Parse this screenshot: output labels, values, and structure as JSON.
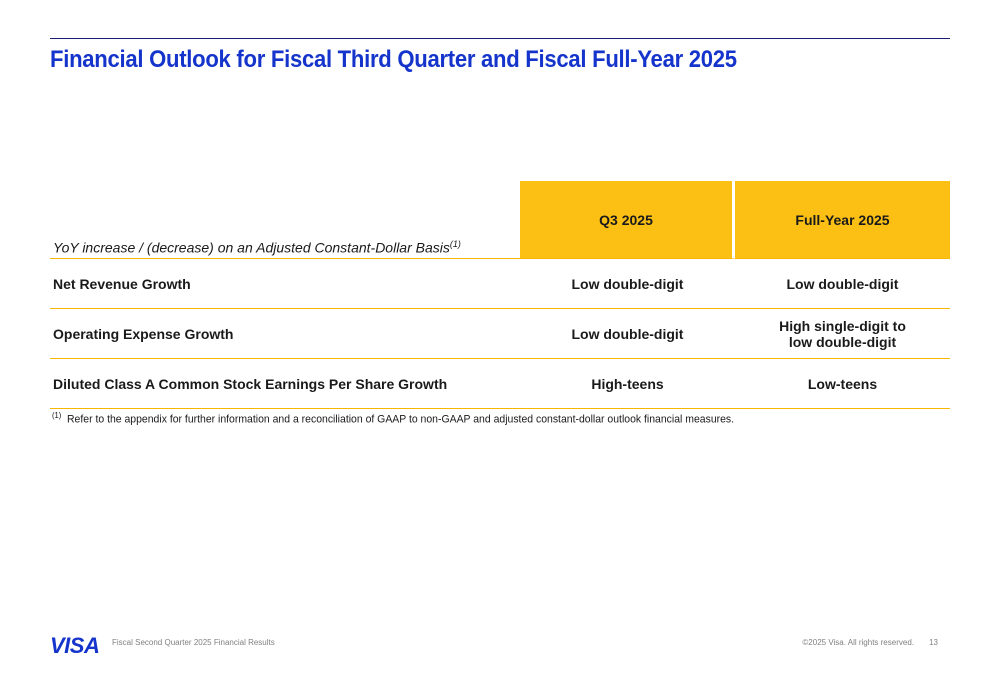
{
  "slide": {
    "title": "Financial Outlook for Fiscal Third Quarter and Fiscal Full-Year 2025"
  },
  "table": {
    "header_label": "YoY increase / (decrease) on an Adjusted Constant-Dollar Basis",
    "header_label_footnote_marker": "(1)",
    "columns": [
      "Q3 2025",
      "Full-Year 2025"
    ],
    "rows": [
      {
        "label": "Net Revenue Growth",
        "q3": "Low double-digit",
        "fy": "Low double-digit"
      },
      {
        "label": "Operating Expense Growth",
        "q3": "Low double-digit",
        "fy_line1": "High single-digit to",
        "fy_line2": "low double-digit"
      },
      {
        "label": "Diluted Class A Common Stock Earnings Per Share Growth",
        "q3": "High-teens",
        "fy": "Low-teens"
      }
    ]
  },
  "footnote": {
    "marker": "(1)",
    "text": "Refer to the appendix for further information and a reconciliation of GAAP to non-GAAP and adjusted constant-dollar outlook financial measures."
  },
  "footer": {
    "logo_text": "VISA",
    "caption": "Fiscal Second Quarter 2025 Financial Results",
    "copyright": "©2025 Visa. All rights reserved.",
    "page_number": "13"
  },
  "colors": {
    "title_blue": "#1434cb",
    "header_yellow": "#fcc015",
    "rule_gold": "#f7b600"
  }
}
